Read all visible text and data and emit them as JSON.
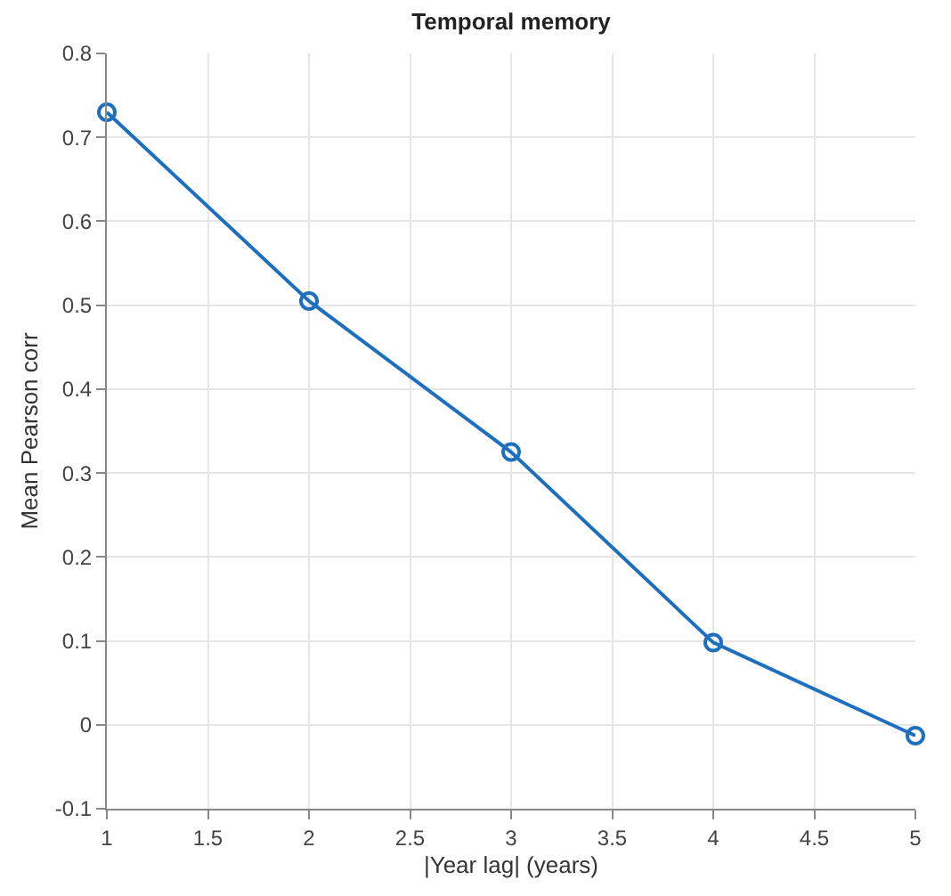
{
  "chart_data": {
    "type": "line",
    "title": "Temporal memory",
    "xlabel": "|Year lag| (years)",
    "ylabel": "Mean Pearson corr",
    "x": [
      1,
      2,
      3,
      4,
      5
    ],
    "series": [
      {
        "color": "#1f6fbf",
        "values": [
          0.73,
          0.505,
          0.325,
          0.098,
          -0.013
        ]
      }
    ],
    "xlim": [
      1,
      5
    ],
    "xticks": [
      1,
      1.5,
      2,
      2.5,
      3,
      3.5,
      4,
      4.5,
      5
    ],
    "ylim": [
      -0.1,
      0.8
    ],
    "yticks": [
      -0.1,
      0,
      0.1,
      0.2,
      0.3,
      0.4,
      0.5,
      0.6,
      0.7,
      0.8
    ],
    "grid": true,
    "marker": "circle",
    "line_style": "solid"
  }
}
